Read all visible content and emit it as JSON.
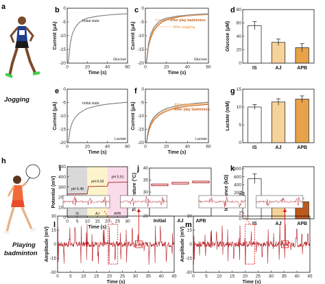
{
  "panel_labels": {
    "a": "a",
    "b": "b",
    "c": "c",
    "d": "d",
    "e": "e",
    "f": "f",
    "g": "g",
    "h": "h",
    "i": "i",
    "j": "j",
    "k": "k",
    "l": "l",
    "m": "m"
  },
  "activities": {
    "top": "Jogging",
    "bottom_line1": "Playing",
    "bottom_line2": "badminton"
  },
  "colors": {
    "gray": "#7a7a7a",
    "orange_light": "#f2b26d",
    "orange_dark": "#c8641e",
    "red": "#b3161e",
    "bar_aj": "#f6d39a",
    "bar_apb": "#e7a24a",
    "bar_apb_k": "#bc5a1e",
    "zone_is": "#d9d9d9",
    "zone_aj": "#fdf4cc",
    "zone_apb": "#fadbe9"
  },
  "chart_data": [
    {
      "id": "b",
      "type": "line",
      "xlabel": "Time (s)",
      "ylabel": "Current (μA)",
      "xlim": [
        0,
        60
      ],
      "ylim": [
        -20,
        0
      ],
      "xticks": [
        "0",
        "20",
        "40",
        "60"
      ],
      "yticks": [
        "0",
        "-5",
        "-10",
        "-15",
        "-20"
      ],
      "corner_label": "Glucose",
      "annotations": [
        "Initial state"
      ],
      "series": [
        {
          "name": "Initial state",
          "x": [
            1,
            3,
            5,
            8,
            12,
            16,
            20,
            30,
            40,
            50,
            60
          ],
          "y": [
            -20,
            -13,
            -9.5,
            -7,
            -5.2,
            -4.2,
            -3.6,
            -2.9,
            -2.5,
            -2.2,
            -2
          ]
        }
      ]
    },
    {
      "id": "c",
      "type": "line",
      "xlabel": "Time (s)",
      "ylabel": "Current (μA)",
      "xlim": [
        0,
        60
      ],
      "ylim": [
        -20,
        0
      ],
      "xticks": [
        "0",
        "20",
        "40",
        "60"
      ],
      "yticks": [
        "0",
        "-5",
        "-10",
        "-15",
        "-20"
      ],
      "corner_label": "Glucose",
      "annotations": [
        "After play badminton",
        "After jogging"
      ],
      "series": [
        {
          "name": "After play badminton",
          "x": [
            1,
            3,
            5,
            8,
            12,
            16,
            20,
            30,
            40,
            50,
            60
          ],
          "y": [
            -20,
            -14,
            -11,
            -8.2,
            -6.3,
            -5,
            -4.3,
            -3.3,
            -2.8,
            -2.5,
            -2.3
          ]
        },
        {
          "name": "After jogging",
          "x": [
            1,
            3,
            5,
            8,
            12,
            16,
            20,
            30,
            40,
            50,
            60
          ],
          "y": [
            -20,
            -13.5,
            -10.2,
            -7.6,
            -5.8,
            -4.7,
            -4,
            -3.1,
            -2.7,
            -2.4,
            -2.2
          ]
        },
        {
          "name": "",
          "x": [
            1,
            3,
            5,
            8,
            12,
            16,
            20,
            30,
            40,
            50,
            60
          ],
          "y": [
            -20,
            -13,
            -9.5,
            -7,
            -5.2,
            -4.2,
            -3.6,
            -2.9,
            -2.5,
            -2.2,
            -2
          ]
        }
      ]
    },
    {
      "id": "d",
      "type": "bar",
      "ylabel": "Glucose (μM)",
      "ylim": [
        0,
        80
      ],
      "yticks": [
        "0",
        "20",
        "40",
        "60",
        "80"
      ],
      "categories": [
        "IS",
        "AJ",
        "APB"
      ],
      "values": [
        56,
        31,
        23
      ],
      "errors": [
        6,
        5,
        6
      ]
    },
    {
      "id": "e",
      "type": "line",
      "xlabel": "Time (s)",
      "ylabel": "Current (μA)",
      "xlim": [
        0,
        60
      ],
      "ylim": [
        -20,
        0
      ],
      "xticks": [
        "0",
        "20",
        "40",
        "60"
      ],
      "yticks": [
        "0",
        "-5",
        "-10",
        "-15",
        "-20"
      ],
      "corner_label": "Lactate",
      "annotations": [
        "Initial state"
      ],
      "series": [
        {
          "name": "Initial state",
          "x": [
            1,
            3,
            5,
            8,
            12,
            16,
            20,
            30,
            40,
            50,
            60
          ],
          "y": [
            -20,
            -15,
            -12.5,
            -10.5,
            -9,
            -8,
            -7.2,
            -6.2,
            -5.6,
            -5.2,
            -4.9
          ]
        }
      ]
    },
    {
      "id": "f",
      "type": "line",
      "xlabel": "Time (s)",
      "ylabel": "Current (μA)",
      "xlim": [
        0,
        60
      ],
      "ylim": [
        -20,
        0
      ],
      "xticks": [
        "0",
        "20",
        "40",
        "60"
      ],
      "yticks": [
        "0",
        "-5",
        "-10",
        "-15",
        "-20"
      ],
      "corner_label": "Lactate",
      "annotations": [
        "After jogging",
        "After play badminton"
      ],
      "series": [
        {
          "name": "After jogging",
          "x": [
            1,
            3,
            5,
            8,
            12,
            16,
            20,
            30,
            40,
            50,
            60
          ],
          "y": [
            -20,
            -15.5,
            -13,
            -11,
            -9.5,
            -8.5,
            -7.7,
            -6.6,
            -6,
            -5.6,
            -5.3
          ]
        },
        {
          "name": "After play badminton",
          "x": [
            1,
            3,
            5,
            8,
            12,
            16,
            20,
            30,
            40,
            50,
            60
          ],
          "y": [
            -20,
            -16,
            -13.6,
            -11.6,
            -10,
            -9,
            -8.2,
            -7,
            -6.4,
            -6,
            -5.7
          ]
        },
        {
          "name": "",
          "x": [
            1,
            3,
            5,
            8,
            12,
            16,
            20,
            30,
            40,
            50,
            60
          ],
          "y": [
            -20,
            -15,
            -12.5,
            -10.5,
            -9,
            -8,
            -7.2,
            -6.2,
            -5.6,
            -5.2,
            -4.9
          ]
        }
      ]
    },
    {
      "id": "g",
      "type": "bar",
      "ylabel": "Lactate (mM)",
      "ylim": [
        0,
        15
      ],
      "yticks": [
        "0",
        "5",
        "10",
        "15"
      ],
      "categories": [
        "IS",
        "AJ",
        "APB"
      ],
      "values": [
        10,
        11.4,
        12.2
      ],
      "errors": [
        0.7,
        0.9,
        0.9
      ]
    },
    {
      "id": "i",
      "type": "line",
      "xlabel": "Time (s)",
      "ylabel": "Potential (mV)",
      "xlim": [
        0,
        30
      ],
      "ylim": [
        0,
        500
      ],
      "xticks": [
        "0",
        "5",
        "10",
        "15",
        "20",
        "25",
        "30"
      ],
      "yticks": [
        "0",
        "100",
        "200",
        "300",
        "400",
        "500"
      ],
      "zones": [
        "IS",
        "AJ",
        "APB"
      ],
      "annotations": [
        "pH 6.48",
        "pH 6.03",
        "pH 5.91"
      ],
      "series": [
        {
          "name": "",
          "x": [
            0,
            10,
            10.5,
            20,
            20.5,
            30
          ],
          "y": [
            230,
            233,
            305,
            308,
            345,
            347
          ]
        }
      ]
    },
    {
      "id": "j",
      "type": "bar",
      "ylabel": "Temperature (°C)",
      "ylim": [
        20,
        40
      ],
      "yticks": [
        "20",
        "25",
        "30",
        "35",
        "40"
      ],
      "categories": [
        "Initial",
        "AJ",
        "APB"
      ],
      "values": [
        33,
        33.7,
        34.2
      ]
    },
    {
      "id": "k",
      "type": "bar",
      "ylabel": "Impedance (kΩ)",
      "yticks": [
        "0",
        "2",
        "4",
        "6",
        "8",
        "200",
        "400",
        "600",
        "800"
      ],
      "categories": [
        "IS",
        "AJ",
        "APB"
      ],
      "values": [
        550,
        5.9,
        5.7
      ],
      "errors": [
        120,
        1,
        1
      ]
    },
    {
      "id": "l",
      "type": "line",
      "xlabel": "Time (s)",
      "ylabel": "Amplitude (mV)",
      "xlim": [
        0,
        45
      ],
      "ylim": [
        -30,
        30
      ],
      "xticks": [
        "0",
        "5",
        "10",
        "15",
        "20",
        "25",
        "30",
        "35",
        "40",
        "45"
      ],
      "yticks": [
        "-30",
        "-15",
        "0",
        "15",
        "30"
      ]
    },
    {
      "id": "m",
      "type": "line",
      "xlabel": "Time (s)",
      "ylabel": "Amplitude (mV)",
      "xlim": [
        0,
        45
      ],
      "ylim": [
        -30,
        30
      ],
      "xticks": [
        "0",
        "5",
        "10",
        "15",
        "20",
        "25",
        "30",
        "35",
        "40",
        "45"
      ],
      "yticks": [
        "-30",
        "-15",
        "0",
        "15",
        "30"
      ]
    }
  ]
}
